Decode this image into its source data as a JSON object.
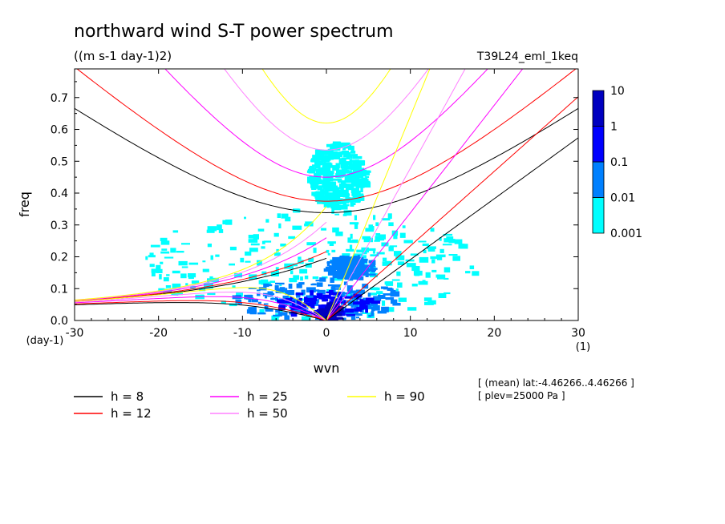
{
  "header": {
    "title": "northward wind S-T power spectrum",
    "subtitle": "((m s-1 day-1)2)",
    "run_label": "T39L24_eml_1keq"
  },
  "meta": {
    "line1": "[ (mean) lat:-4.46266..4.46266 ]",
    "line2": "[ plev=25000 Pa ]"
  },
  "chart_data": {
    "type": "heatmap",
    "title": "northward wind S-T power spectrum",
    "subtitle": "((m s-1 day-1)2)",
    "xlabel": "wvn",
    "ylabel": "freq",
    "x_unit": "(1)",
    "y_unit": "(day-1)",
    "xlim": [
      -30,
      30
    ],
    "ylim": [
      0,
      0.79
    ],
    "x_ticks": [
      -30,
      -20,
      -10,
      0,
      10,
      20,
      30
    ],
    "x_tick_labels": [
      "-30",
      "-20",
      "-10",
      "0",
      "10",
      "20",
      "30"
    ],
    "y_ticks": [
      0,
      0.1,
      0.2,
      0.3,
      0.4,
      0.5,
      0.6,
      0.7
    ],
    "y_tick_labels": [
      "0.0",
      "0.1",
      "0.2",
      "0.3",
      "0.4",
      "0.5",
      "0.6",
      "0.7"
    ],
    "colorbar": {
      "levels": [
        "0.001",
        "0.01",
        "0.1",
        "1",
        "10"
      ],
      "colors": [
        "#00ffff",
        "#0080ff",
        "#0000ff",
        "#0000c0"
      ]
    },
    "dispersion_curves": [
      {
        "h": 8,
        "label": "h =  8",
        "color": "#000000"
      },
      {
        "h": 12,
        "label": "h = 12",
        "color": "#ff0000"
      },
      {
        "h": 25,
        "label": "h = 25",
        "color": "#ff00ff"
      },
      {
        "h": 50,
        "label": "h = 50",
        "color": "#ff80ff"
      },
      {
        "h": 90,
        "label": "h = 90",
        "color": "#ffff00"
      }
    ],
    "power_regions": [
      {
        "level": 0,
        "x": [
          -22,
          18
        ],
        "y": [
          0.0,
          0.35
        ]
      },
      {
        "level": 0,
        "x": [
          -2,
          5
        ],
        "y": [
          0.35,
          0.56
        ]
      },
      {
        "level": 1,
        "x": [
          -11,
          9
        ],
        "y": [
          0.0,
          0.13
        ]
      },
      {
        "level": 1,
        "x": [
          0,
          6
        ],
        "y": [
          0.13,
          0.2
        ]
      },
      {
        "level": 2,
        "x": [
          -6,
          6
        ],
        "y": [
          0.01,
          0.09
        ]
      },
      {
        "level": 3,
        "x": [
          -1,
          2
        ],
        "y": [
          0.0,
          0.05
        ]
      }
    ]
  }
}
